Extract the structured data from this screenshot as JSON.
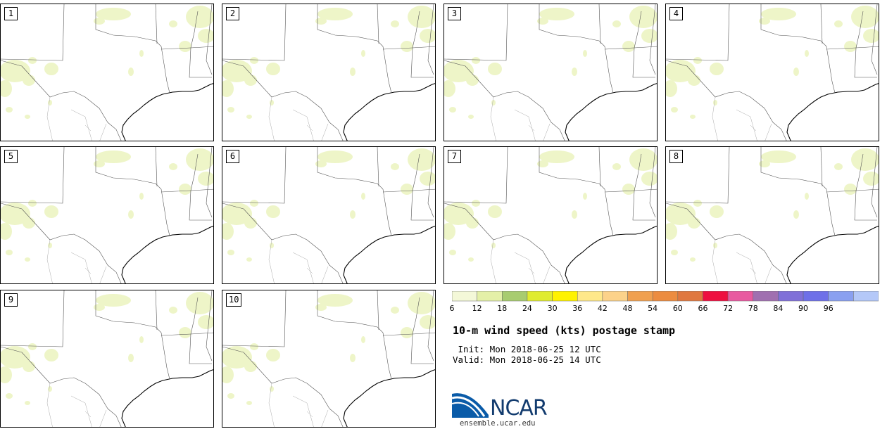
{
  "panels": [
    {
      "label": "1"
    },
    {
      "label": "2"
    },
    {
      "label": "3"
    },
    {
      "label": "4"
    },
    {
      "label": "5"
    },
    {
      "label": "6"
    },
    {
      "label": "7"
    },
    {
      "label": "8"
    },
    {
      "label": "9"
    },
    {
      "label": "10"
    }
  ],
  "colorbar": {
    "ticks": [
      "6",
      "12",
      "18",
      "24",
      "30",
      "36",
      "42",
      "48",
      "54",
      "60",
      "66",
      "72",
      "78",
      "84",
      "90",
      "96"
    ],
    "colors": [
      "#f4f8d8",
      "#e4f0a8",
      "#a8cc70",
      "#e0ec30",
      "#fff200",
      "#ffe88a",
      "#fcd28a",
      "#f0a050",
      "#ec8c40",
      "#e07840",
      "#ee1040",
      "#e85aa0",
      "#a070b0",
      "#8070d8",
      "#6e70e8",
      "#8aa0f0",
      "#b4c8f8"
    ]
  },
  "title": "10-m wind speed (kts) postage stamp",
  "init_line": " Init: Mon 2018-06-25 12 UTC",
  "valid_line": "Valid: Mon 2018-06-25 14 UTC",
  "logo": {
    "text": "NCAR",
    "website": "ensemble.ucar.edu"
  }
}
